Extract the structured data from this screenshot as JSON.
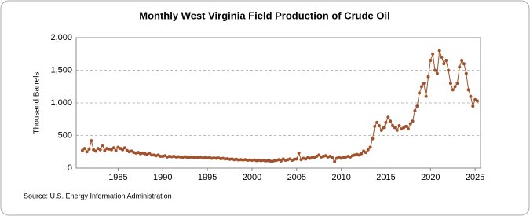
{
  "chart_data": {
    "type": "line",
    "title": "Monthly West Virginia Field Production of Crude Oil",
    "y_label": "Thousand Barrels",
    "source": "Source: U.S. Energy Information Administration",
    "xlim": [
      1980.3,
      2025.6
    ],
    "ylim": [
      0,
      2000
    ],
    "xticks": [
      1985,
      1990,
      1995,
      2000,
      2005,
      2010,
      2015,
      2020,
      2025
    ],
    "yticks": [
      0,
      500,
      {
        "value": 1000,
        "label": "1,000"
      },
      {
        "value": 1500,
        "label": "1,500"
      },
      {
        "value": 2000,
        "label": "2,000"
      }
    ],
    "grid": true,
    "x": [
      1981,
      1981.25,
      1981.5,
      1981.75,
      1982,
      1982.25,
      1982.5,
      1982.75,
      1983,
      1983.25,
      1983.5,
      1983.75,
      1984,
      1984.25,
      1984.5,
      1984.75,
      1985,
      1985.25,
      1985.5,
      1985.75,
      1986,
      1986.25,
      1986.5,
      1986.75,
      1987,
      1987.25,
      1987.5,
      1987.75,
      1988,
      1988.25,
      1988.5,
      1988.75,
      1989,
      1989.25,
      1989.5,
      1989.75,
      1990,
      1990.25,
      1990.5,
      1990.75,
      1991,
      1991.25,
      1991.5,
      1991.75,
      1992,
      1992.25,
      1992.5,
      1992.75,
      1993,
      1993.25,
      1993.5,
      1993.75,
      1994,
      1994.25,
      1994.5,
      1994.75,
      1995,
      1995.25,
      1995.5,
      1995.75,
      1996,
      1996.25,
      1996.5,
      1996.75,
      1997,
      1997.25,
      1997.5,
      1997.75,
      1998,
      1998.25,
      1998.5,
      1998.75,
      1999,
      1999.25,
      1999.5,
      1999.75,
      2000,
      2000.25,
      2000.5,
      2000.75,
      2001,
      2001.25,
      2001.5,
      2001.75,
      2002,
      2002.25,
      2002.5,
      2002.75,
      2003,
      2003.25,
      2003.5,
      2003.75,
      2004,
      2004.25,
      2004.5,
      2004.75,
      2005,
      2005.25,
      2005.5,
      2005.75,
      2006,
      2006.25,
      2006.5,
      2006.75,
      2007,
      2007.25,
      2007.5,
      2007.75,
      2008,
      2008.25,
      2008.5,
      2008.75,
      2009,
      2009.25,
      2009.5,
      2009.75,
      2010,
      2010.25,
      2010.5,
      2010.75,
      2011,
      2011.25,
      2011.5,
      2011.75,
      2012,
      2012.25,
      2012.5,
      2012.75,
      2013,
      2013.25,
      2013.5,
      2013.75,
      2014,
      2014.25,
      2014.5,
      2014.75,
      2015,
      2015.25,
      2015.5,
      2015.75,
      2016,
      2016.25,
      2016.5,
      2016.75,
      2017,
      2017.25,
      2017.5,
      2017.75,
      2018,
      2018.25,
      2018.5,
      2018.75,
      2019,
      2019.25,
      2019.5,
      2019.75,
      2020,
      2020.25,
      2020.5,
      2020.75,
      2021,
      2021.25,
      2021.5,
      2021.75,
      2022,
      2022.25,
      2022.5,
      2022.75,
      2023,
      2023.25,
      2023.5,
      2023.75,
      2024,
      2024.25,
      2024.5,
      2024.75,
      2025,
      2025.25
    ],
    "series": [
      {
        "color": "#a0522d",
        "values": [
          270,
          300,
          250,
          290,
          420,
          280,
          260,
          300,
          280,
          350,
          270,
          300,
          290,
          280,
          310,
          270,
          320,
          300,
          280,
          310,
          270,
          250,
          260,
          240,
          230,
          240,
          220,
          230,
          220,
          210,
          230,
          200,
          200,
          190,
          200,
          180,
          180,
          190,
          170,
          180,
          175,
          180,
          170,
          175,
          170,
          165,
          175,
          160,
          165,
          170,
          160,
          165,
          160,
          170,
          155,
          160,
          155,
          160,
          150,
          155,
          150,
          155,
          145,
          150,
          140,
          145,
          135,
          140,
          130,
          135,
          125,
          130,
          125,
          130,
          120,
          125,
          120,
          125,
          115,
          120,
          115,
          120,
          110,
          115,
          110,
          100,
          115,
          120,
          130,
          110,
          140,
          120,
          130,
          140,
          120,
          135,
          140,
          230,
          130,
          150,
          140,
          160,
          150,
          170,
          160,
          180,
          200,
          170,
          180,
          190,
          170,
          180,
          160,
          100,
          150,
          170,
          150,
          160,
          170,
          180,
          170,
          190,
          200,
          210,
          200,
          220,
          260,
          240,
          280,
          320,
          450,
          640,
          700,
          650,
          580,
          620,
          700,
          780,
          720,
          650,
          620,
          580,
          650,
          600,
          620,
          640,
          600,
          680,
          720,
          880,
          950,
          1150,
          1250,
          1300,
          1100,
          1400,
          1650,
          1750,
          1500,
          1450,
          1800,
          1700,
          1600,
          1650,
          1500,
          1300,
          1200,
          1250,
          1300,
          1550,
          1650,
          1600,
          1450,
          1200,
          1100,
          950,
          1050,
          1030
        ]
      }
    ]
  }
}
